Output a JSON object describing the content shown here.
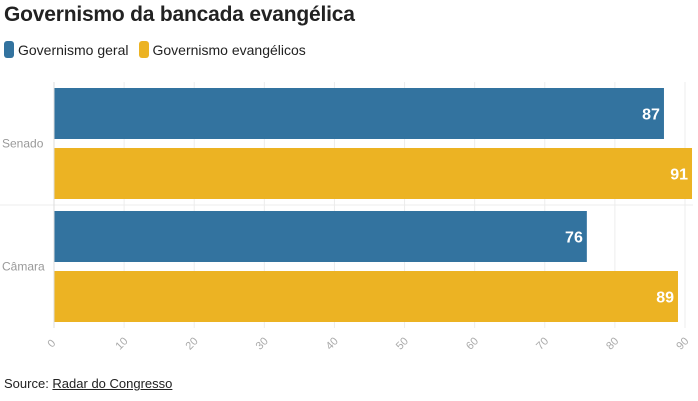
{
  "title": "Governismo da bancada evangélica",
  "legend": [
    {
      "label": "Governismo geral",
      "color": "#33739f"
    },
    {
      "label": "Governismo evangélicos",
      "color": "#ecb323"
    }
  ],
  "chart_data": {
    "type": "bar",
    "orientation": "horizontal",
    "title": "Governismo da bancada evangélica",
    "categories": [
      "Senado",
      "Câmara"
    ],
    "series": [
      {
        "name": "Governismo geral",
        "color": "#33739f",
        "values": [
          87,
          76
        ]
      },
      {
        "name": "Governismo evangélicos",
        "color": "#ecb323",
        "values": [
          91,
          89
        ]
      }
    ],
    "xlim": [
      0,
      90
    ],
    "xticks": [
      0,
      10,
      20,
      30,
      40,
      50,
      60,
      70,
      80,
      90
    ],
    "data_labels": true,
    "grid": true,
    "legend_position": "top-left"
  },
  "source": {
    "prefix": "Source: ",
    "link_text": "Radar do Congresso"
  }
}
